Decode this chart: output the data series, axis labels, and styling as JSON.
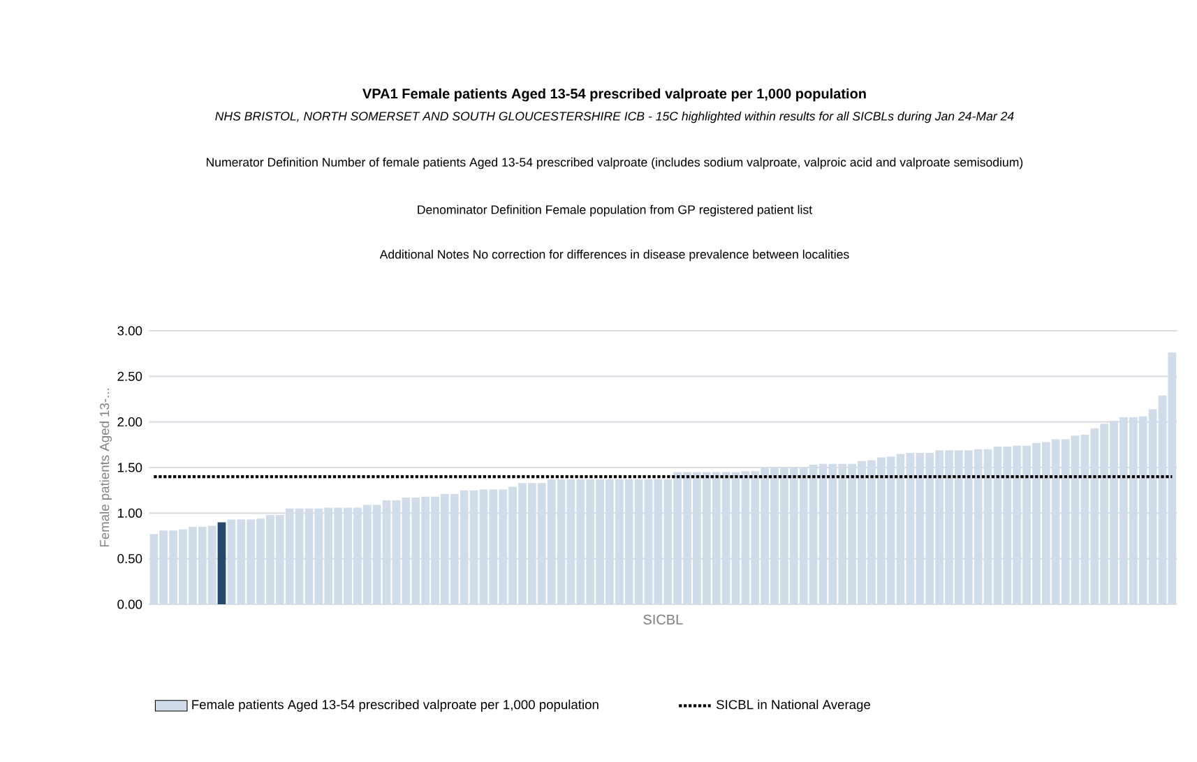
{
  "chart_data": {
    "type": "bar",
    "title": "VPA1 Female patients Aged 13-54 prescribed valproate per 1,000 population",
    "subtitle": "NHS BRISTOL, NORTH SOMERSET AND SOUTH GLOUCESTERSHIRE ICB - 15C highlighted within results for all SICBLs during Jan 24-Mar 24",
    "annotations": [
      "Numerator Definition Number of female patients Aged 13-54 prescribed valproate (includes sodium valproate, valproic acid and valproate semisodium)",
      "Denominator Definition Female population from GP registered patient list",
      "Additional Notes No correction for differences in disease prevalence between localities"
    ],
    "xlabel": "SICBL",
    "ylabel": "Female patients Aged 13-...",
    "categories": [
      null,
      null,
      null,
      null,
      null,
      null,
      null,
      null,
      null,
      null,
      null,
      null,
      null,
      null,
      null,
      null,
      null,
      null,
      null,
      null,
      null,
      null,
      null,
      null,
      null,
      null,
      null,
      null,
      null,
      null,
      null,
      null,
      null,
      null,
      null,
      null,
      null,
      null,
      null,
      null,
      null,
      null,
      null,
      null,
      null,
      null,
      null,
      null,
      null,
      null,
      null,
      null,
      null,
      null,
      null,
      null,
      null,
      null,
      null,
      null,
      null,
      null,
      null,
      null,
      null,
      null,
      null,
      null,
      null,
      null,
      null,
      null,
      null,
      null,
      null,
      null,
      null,
      null,
      null,
      null,
      null,
      null,
      null,
      null,
      null,
      null,
      null,
      null,
      null,
      null,
      null,
      null,
      null,
      null,
      null,
      null,
      null,
      null,
      null,
      null,
      null,
      null,
      null,
      null,
      null,
      null
    ],
    "ylim": [
      0,
      3
    ],
    "yticks": [
      {
        "value": 0,
        "label": "0.00"
      },
      {
        "value": 0.5,
        "label": "0.50"
      },
      {
        "value": 1,
        "label": "1.00"
      },
      {
        "value": 1.5,
        "label": "1.50"
      },
      {
        "value": 2,
        "label": "2.00"
      },
      {
        "value": 2.5,
        "label": "2.50"
      },
      {
        "value": 3,
        "label": "3.00"
      }
    ],
    "grid": "y",
    "legend": "bottom",
    "series": [
      {
        "name": "Female patients Aged 13-54 prescribed valproate per 1,000 population",
        "color": "#d0dcea",
        "colors": [
          "#d0dcea",
          "#d0dcea",
          "#d0dcea",
          "#d0dcea",
          "#d0dcea",
          "#d0dcea",
          "#d0dcea",
          "#264a6e",
          "#d0dcea",
          "#d0dcea",
          "#d0dcea",
          "#d0dcea",
          "#d0dcea",
          "#d0dcea",
          "#d0dcea",
          "#d0dcea",
          "#d0dcea",
          "#d0dcea",
          "#d0dcea",
          "#d0dcea",
          "#d0dcea",
          "#d0dcea",
          "#d0dcea",
          "#d0dcea",
          "#d0dcea",
          "#d0dcea",
          "#d0dcea",
          "#d0dcea",
          "#d0dcea",
          "#d0dcea",
          "#d0dcea",
          "#d0dcea",
          "#d0dcea",
          "#d0dcea",
          "#d0dcea",
          "#d0dcea",
          "#d0dcea",
          "#d0dcea",
          "#d0dcea",
          "#d0dcea",
          "#d0dcea",
          "#d0dcea",
          "#d0dcea",
          "#d0dcea",
          "#d0dcea",
          "#d0dcea",
          "#d0dcea",
          "#d0dcea",
          "#d0dcea",
          "#d0dcea",
          "#d0dcea",
          "#d0dcea",
          "#d0dcea",
          "#d0dcea",
          "#d0dcea",
          "#d0dcea",
          "#d0dcea",
          "#d0dcea",
          "#d0dcea",
          "#d0dcea",
          "#d0dcea",
          "#d0dcea",
          "#d0dcea",
          "#d0dcea",
          "#d0dcea",
          "#d0dcea",
          "#d0dcea",
          "#d0dcea",
          "#d0dcea",
          "#d0dcea",
          "#d0dcea",
          "#d0dcea",
          "#d0dcea",
          "#d0dcea",
          "#d0dcea",
          "#d0dcea",
          "#d0dcea",
          "#d0dcea",
          "#d0dcea",
          "#d0dcea",
          "#d0dcea",
          "#d0dcea",
          "#d0dcea",
          "#d0dcea",
          "#d0dcea",
          "#d0dcea",
          "#d0dcea",
          "#d0dcea",
          "#d0dcea",
          "#d0dcea",
          "#d0dcea",
          "#d0dcea",
          "#d0dcea",
          "#d0dcea",
          "#d0dcea",
          "#d0dcea",
          "#d0dcea",
          "#d0dcea",
          "#d0dcea",
          "#d0dcea",
          "#d0dcea",
          "#d0dcea",
          "#d0dcea",
          "#d0dcea",
          "#d0dcea",
          "#d0dcea"
        ],
        "values": [
          0.77,
          0.81,
          0.81,
          0.82,
          0.85,
          0.85,
          0.86,
          0.9,
          0.93,
          0.93,
          0.93,
          0.94,
          0.98,
          0.98,
          1.05,
          1.05,
          1.05,
          1.05,
          1.06,
          1.06,
          1.06,
          1.06,
          1.09,
          1.09,
          1.14,
          1.14,
          1.17,
          1.17,
          1.18,
          1.18,
          1.21,
          1.21,
          1.25,
          1.25,
          1.26,
          1.26,
          1.26,
          1.29,
          1.33,
          1.33,
          1.33,
          1.37,
          1.37,
          1.37,
          1.37,
          1.37,
          1.37,
          1.37,
          1.37,
          1.37,
          1.37,
          1.37,
          1.37,
          1.37,
          1.45,
          1.45,
          1.45,
          1.45,
          1.45,
          1.45,
          1.45,
          1.46,
          1.46,
          1.5,
          1.5,
          1.5,
          1.5,
          1.5,
          1.53,
          1.54,
          1.54,
          1.54,
          1.54,
          1.57,
          1.58,
          1.61,
          1.62,
          1.65,
          1.66,
          1.66,
          1.66,
          1.69,
          1.69,
          1.69,
          1.69,
          1.7,
          1.7,
          1.73,
          1.73,
          1.74,
          1.74,
          1.77,
          1.78,
          1.81,
          1.81,
          1.85,
          1.86,
          1.93,
          1.98,
          2.01,
          2.05,
          2.05,
          2.06,
          2.14,
          2.29,
          2.76
        ]
      },
      {
        "type": "line",
        "name": "SICBL in National Average",
        "color": "#000000",
        "line_style": "dotted",
        "marker": "none",
        "values": [
          1.4,
          1.4,
          1.4,
          1.4,
          1.4,
          1.4,
          1.4,
          1.4,
          1.4,
          1.4,
          1.4,
          1.4,
          1.4,
          1.4,
          1.4,
          1.4,
          1.4,
          1.4,
          1.4,
          1.4,
          1.4,
          1.4,
          1.4,
          1.4,
          1.4,
          1.4,
          1.4,
          1.4,
          1.4,
          1.4,
          1.4,
          1.4,
          1.4,
          1.4,
          1.4,
          1.4,
          1.4,
          1.4,
          1.4,
          1.4,
          1.4,
          1.4,
          1.4,
          1.4,
          1.4,
          1.4,
          1.4,
          1.4,
          1.4,
          1.4,
          1.4,
          1.4,
          1.4,
          1.4,
          1.4,
          1.4,
          1.4,
          1.4,
          1.4,
          1.4,
          1.4,
          1.4,
          1.4,
          1.4,
          1.4,
          1.4,
          1.4,
          1.4,
          1.4,
          1.4,
          1.4,
          1.4,
          1.4,
          1.4,
          1.4,
          1.4,
          1.4,
          1.4,
          1.4,
          1.4,
          1.4,
          1.4,
          1.4,
          1.4,
          1.4,
          1.4,
          1.4,
          1.4,
          1.4,
          1.4,
          1.4,
          1.4,
          1.4,
          1.4,
          1.4,
          1.4,
          1.4,
          1.4,
          1.4,
          1.4,
          1.4,
          1.4,
          1.4,
          1.4,
          1.4,
          1.4
        ]
      }
    ]
  }
}
